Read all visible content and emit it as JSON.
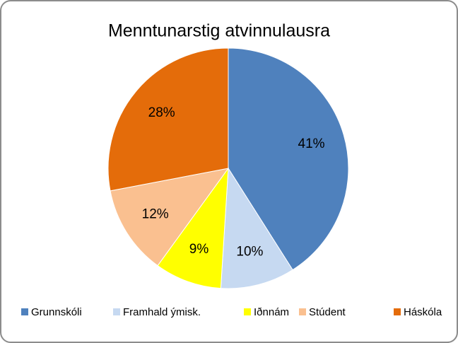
{
  "chart_data": {
    "type": "pie",
    "title": "Menntunarstig atvinnulausra",
    "categories": [
      "Grunnskóli",
      "Framhald ýmisk.",
      "Iðnnám",
      "Stúdent",
      "Háskóla"
    ],
    "values": [
      41,
      10,
      9,
      12,
      28
    ],
    "value_labels": [
      "41%",
      "10%",
      "9%",
      "12%",
      "28%"
    ],
    "colors": [
      "#4f81bd",
      "#c6d9f1",
      "#ffff00",
      "#fac090",
      "#e46c0a"
    ],
    "legend": "bottom"
  }
}
